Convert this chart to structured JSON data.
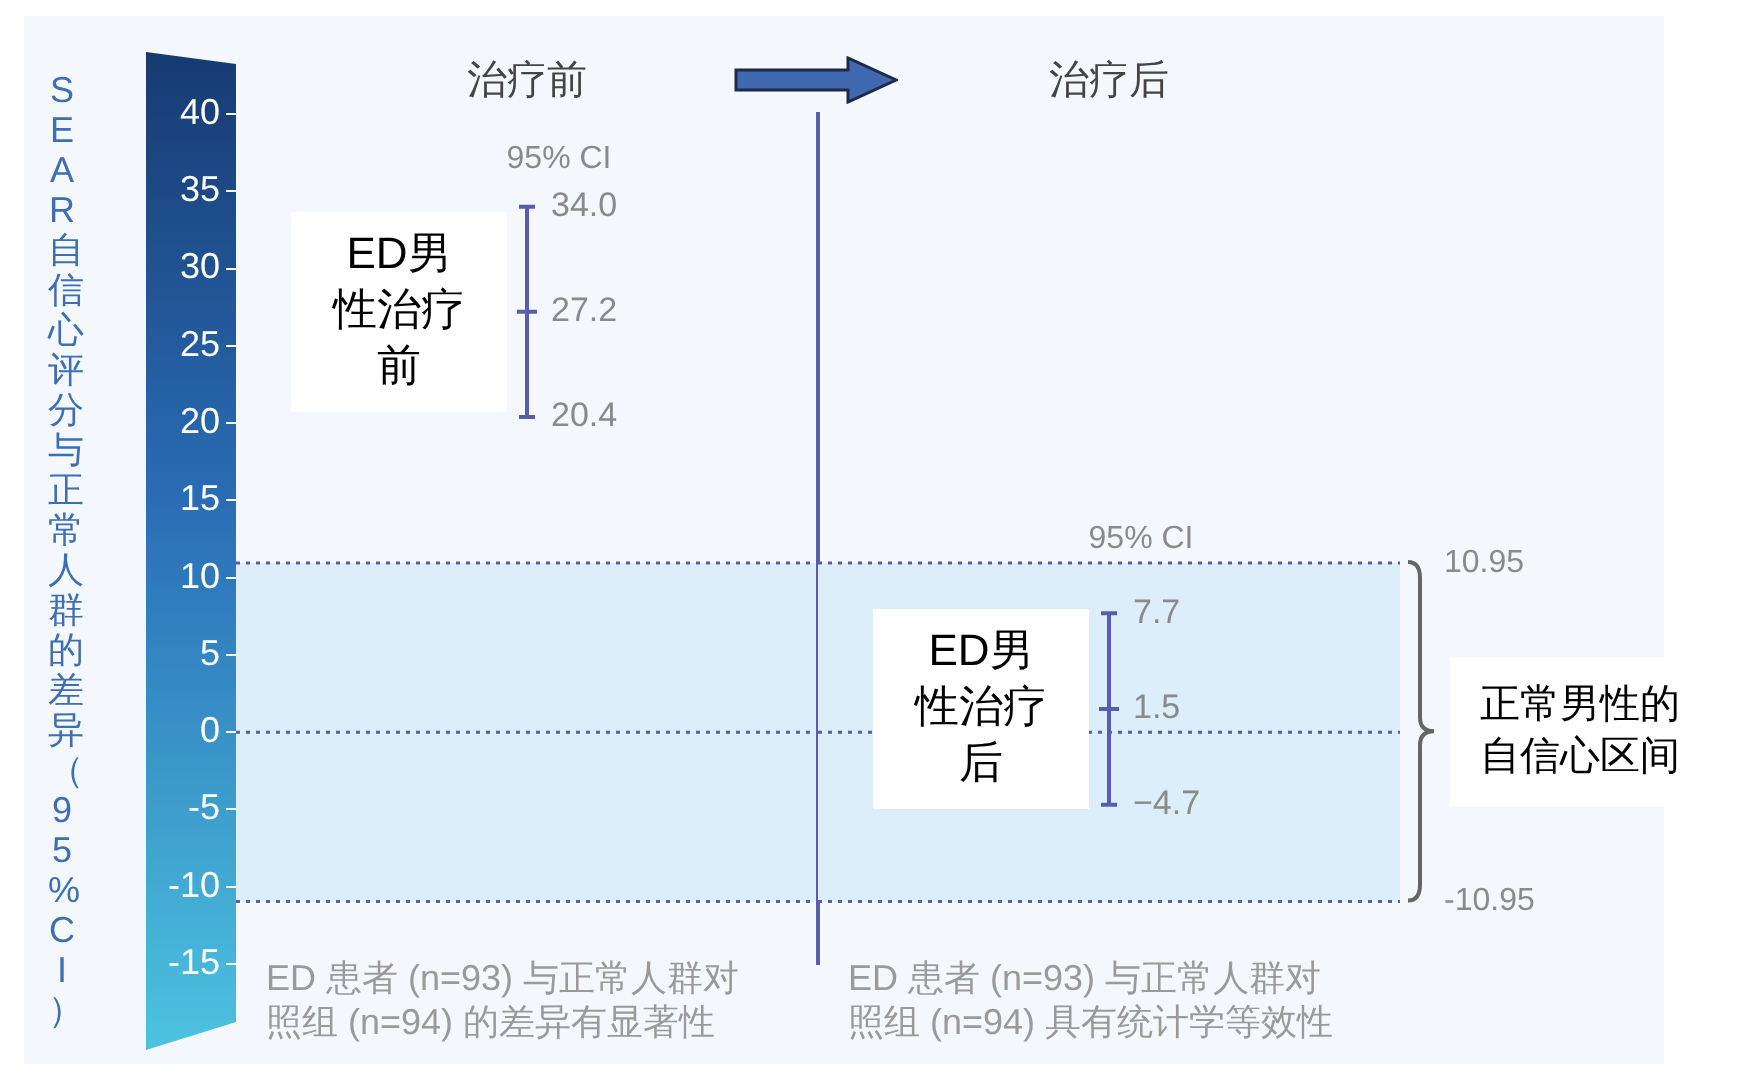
{
  "chart_data": [
    {
      "type": "scatter",
      "categories": [
        "治疗前"
      ],
      "ylabel": "SEAR 自信心评分与正常人群的差异（95%CI）",
      "series": [
        {
          "color": "#5a5cad",
          "values": [
            27.2
          ],
          "errors": [
            6.8
          ]
        }
      ],
      "data_labels": true,
      "marker": "cross",
      "ylim": [
        -15,
        40
      ],
      "yticks": [
        -15,
        -10,
        -5,
        0,
        5,
        10,
        15,
        20,
        25,
        30,
        35,
        40
      ],
      "ref_lines": [
        {
          "axis": "y",
          "value": 10.95,
          "color": "#5a5cad",
          "line_style": "dotted"
        },
        {
          "axis": "y",
          "value": 0,
          "color": "#5a5cad",
          "line_style": "dotted"
        },
        {
          "axis": "y",
          "value": -10.95,
          "color": "#5a5cad",
          "line_style": "dotted"
        }
      ],
      "bands": [
        {
          "axis": "y",
          "from": -10.95,
          "to": 10.95,
          "color": "#dbeef9"
        }
      ],
      "annotations": [
        "95% CI",
        {
          "text": "34.0",
          "x": "治疗前",
          "y": 34.0
        },
        {
          "text": "20.4",
          "x": "治疗前",
          "y": 20.4
        },
        {
          "text": "ED男性治疗前",
          "x": "治疗前",
          "y": 27.2
        },
        "ED 患者 (n=93) 与正常人群对照组 (n=94) 的差异有显著性"
      ]
    },
    {
      "type": "scatter",
      "categories": [
        "治疗后"
      ],
      "series": [
        {
          "color": "#5a5cad",
          "values": [
            1.5
          ],
          "errors": [
            6.2
          ]
        }
      ],
      "data_labels": true,
      "marker": "cross",
      "ylim": [
        -15,
        40
      ],
      "tick_labels": "x",
      "ref_lines": [
        {
          "axis": "y",
          "value": 10.95,
          "label": "10.95",
          "color": "#5a5cad",
          "line_style": "dotted"
        },
        {
          "axis": "y",
          "value": 0,
          "color": "#5a5cad",
          "line_style": "dotted"
        },
        {
          "axis": "y",
          "value": -10.95,
          "label": "-10.95",
          "color": "#5a5cad",
          "line_style": "dotted"
        }
      ],
      "bands": [
        {
          "axis": "y",
          "from": -10.95,
          "to": 10.95,
          "label": "正常男性的自信心区间",
          "color": "#dbeef9"
        }
      ],
      "annotations": [
        "95% CI",
        {
          "text": "7.7",
          "x": "治疗后",
          "y": 7.7
        },
        {
          "text": "−4.7",
          "x": "治疗后",
          "y": -4.7
        },
        {
          "text": "ED男性治疗后",
          "x": "治疗后",
          "y": 1.5
        },
        "ED 患者 (n=93) 与正常人群对照组 (n=94) 具有统计学等效性"
      ]
    }
  ]
}
